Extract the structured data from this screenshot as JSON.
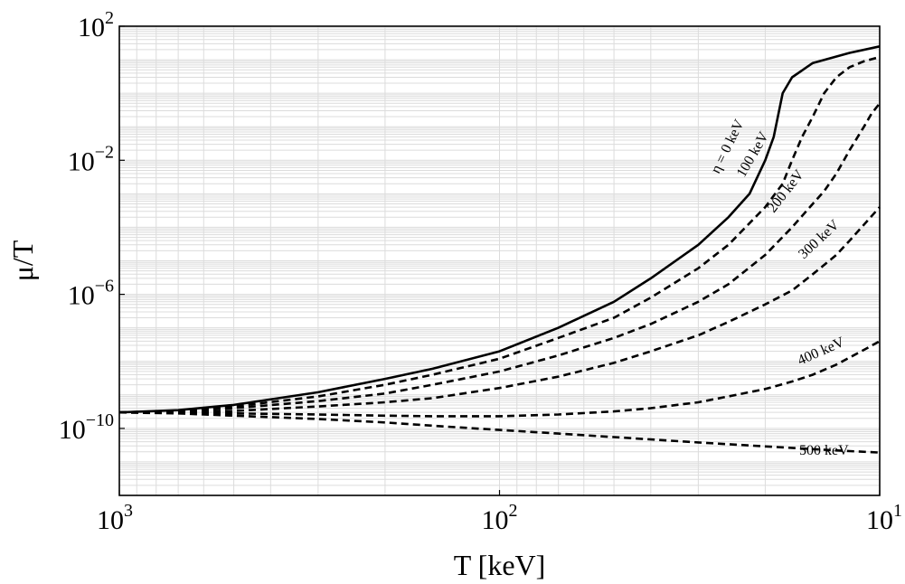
{
  "chart_data": {
    "type": "line",
    "title": "",
    "xlabel": "T [keV]",
    "ylabel": "μ/T",
    "x_scale": "log",
    "x_reversed": true,
    "y_scale": "log",
    "xlim": [
      1000,
      10
    ],
    "ylim": [
      1e-12,
      100
    ],
    "grid": true,
    "x_ticks": [
      {
        "value": 1000,
        "base": "10",
        "exp": "3"
      },
      {
        "value": 100,
        "base": "10",
        "exp": "2"
      },
      {
        "value": 10,
        "base": "10",
        "exp": "1"
      }
    ],
    "y_ticks": [
      {
        "value": 100,
        "base": "10",
        "exp": "2"
      },
      {
        "value": 0.01,
        "base": "10",
        "exp": "−2"
      },
      {
        "value": 1e-06,
        "base": "10",
        "exp": "−6"
      },
      {
        "value": 1e-10,
        "base": "10",
        "exp": "−10"
      }
    ],
    "series": [
      {
        "name": "η = 0 keV",
        "label": "η = 0 keV",
        "style": "solid",
        "points": [
          [
            1000,
            3e-10
          ],
          [
            700,
            3.5e-10
          ],
          [
            500,
            5e-10
          ],
          [
            300,
            1.2e-09
          ],
          [
            200,
            3e-09
          ],
          [
            150,
            6e-09
          ],
          [
            100,
            2e-08
          ],
          [
            70,
            1e-07
          ],
          [
            50,
            6e-07
          ],
          [
            40,
            3e-06
          ],
          [
            30,
            3e-05
          ],
          [
            25,
            0.0002
          ],
          [
            22,
            0.001
          ],
          [
            20,
            0.01
          ],
          [
            19,
            0.05
          ],
          [
            18,
            1.0
          ],
          [
            17,
            3.0
          ],
          [
            15,
            8.0
          ],
          [
            12,
            16.0
          ],
          [
            10,
            25.0
          ]
        ]
      },
      {
        "name": "100 keV",
        "label": "100 keV",
        "style": "dashed",
        "points": [
          [
            1000,
            3e-10
          ],
          [
            700,
            3.4e-10
          ],
          [
            500,
            4.5e-10
          ],
          [
            300,
            9e-10
          ],
          [
            200,
            2e-09
          ],
          [
            150,
            4e-09
          ],
          [
            100,
            1.2e-08
          ],
          [
            70,
            5e-08
          ],
          [
            50,
            2e-07
          ],
          [
            40,
            8e-07
          ],
          [
            30,
            6e-06
          ],
          [
            25,
            3e-05
          ],
          [
            20,
            0.0004
          ],
          [
            18,
            0.002
          ],
          [
            17,
            0.01
          ],
          [
            16,
            0.05
          ],
          [
            15,
            0.2
          ],
          [
            14,
            1.0
          ],
          [
            13,
            3.0
          ],
          [
            12,
            6.0
          ],
          [
            11,
            9.0
          ],
          [
            10,
            12.0
          ]
        ]
      },
      {
        "name": "200 keV",
        "label": "200 keV",
        "style": "dashed",
        "points": [
          [
            1000,
            3e-10
          ],
          [
            700,
            3.2e-10
          ],
          [
            500,
            4e-10
          ],
          [
            300,
            6.5e-10
          ],
          [
            200,
            1.1e-09
          ],
          [
            150,
            2e-09
          ],
          [
            100,
            5e-09
          ],
          [
            70,
            1.5e-08
          ],
          [
            50,
            5e-08
          ],
          [
            40,
            1.3e-07
          ],
          [
            30,
            6e-07
          ],
          [
            25,
            2e-06
          ],
          [
            20,
            1.5e-05
          ],
          [
            17,
            0.0001
          ],
          [
            15,
            0.0005
          ],
          [
            14,
            0.0012
          ],
          [
            13,
            0.004
          ],
          [
            12,
            0.02
          ],
          [
            11,
            0.1
          ],
          [
            10.5,
            0.25
          ],
          [
            10,
            0.5
          ]
        ]
      },
      {
        "name": "300 keV",
        "label": "300 keV",
        "style": "dashed",
        "points": [
          [
            1000,
            3e-10
          ],
          [
            700,
            3e-10
          ],
          [
            500,
            3.3e-10
          ],
          [
            300,
            4.5e-10
          ],
          [
            200,
            6e-10
          ],
          [
            150,
            8e-10
          ],
          [
            100,
            1.6e-09
          ],
          [
            70,
            3.5e-09
          ],
          [
            50,
            9e-09
          ],
          [
            40,
            2e-08
          ],
          [
            30,
            6e-08
          ],
          [
            25,
            1.5e-07
          ],
          [
            20,
            5e-07
          ],
          [
            17,
            1.3e-06
          ],
          [
            15,
            4e-06
          ],
          [
            13,
            1.5e-05
          ],
          [
            12,
            4e-05
          ],
          [
            11,
            0.00012
          ],
          [
            10,
            0.0004
          ]
        ]
      },
      {
        "name": "400 keV",
        "label": "400 keV",
        "style": "dashed",
        "points": [
          [
            1000,
            3e-10
          ],
          [
            700,
            2.9e-10
          ],
          [
            500,
            2.8e-10
          ],
          [
            300,
            2.6e-10
          ],
          [
            200,
            2.4e-10
          ],
          [
            150,
            2.3e-10
          ],
          [
            100,
            2.3e-10
          ],
          [
            70,
            2.6e-10
          ],
          [
            50,
            3.2e-10
          ],
          [
            40,
            4e-10
          ],
          [
            30,
            6e-10
          ],
          [
            25,
            9e-10
          ],
          [
            20,
            1.5e-09
          ],
          [
            17,
            2.5e-09
          ],
          [
            15,
            4e-09
          ],
          [
            13,
            8e-09
          ],
          [
            12,
            1.3e-08
          ],
          [
            11,
            2.2e-08
          ],
          [
            10,
            4e-08
          ]
        ]
      },
      {
        "name": "500 keV",
        "label": "500 keV",
        "style": "dashed",
        "points": [
          [
            1000,
            3e-10
          ],
          [
            700,
            2.8e-10
          ],
          [
            500,
            2.4e-10
          ],
          [
            300,
            1.9e-10
          ],
          [
            200,
            1.5e-10
          ],
          [
            150,
            1.2e-10
          ],
          [
            100,
            9e-11
          ],
          [
            70,
            7e-11
          ],
          [
            50,
            5.5e-11
          ],
          [
            30,
            3.8e-11
          ],
          [
            20,
            2.9e-11
          ],
          [
            15,
            2.4e-11
          ],
          [
            12,
            2.1e-11
          ],
          [
            10,
            1.9e-11
          ]
        ]
      }
    ]
  }
}
